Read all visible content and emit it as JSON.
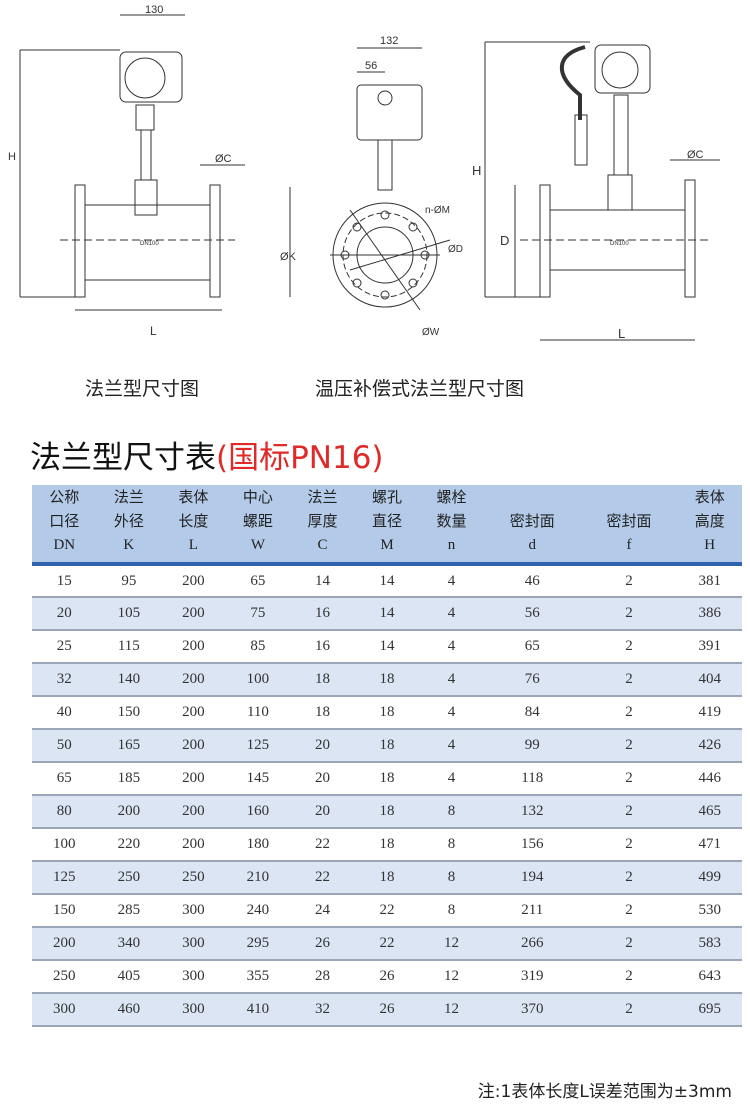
{
  "drawings": {
    "left": {
      "width_label": "130",
      "h_label": "H",
      "c_label": "ØC",
      "k_label": "ØK",
      "l_label": "L",
      "model": "DN100",
      "caption": "法兰型尺寸图"
    },
    "middle": {
      "width_label": "132",
      "offset_label": "56",
      "nm_label": "n-ØM",
      "d_label": "ØD",
      "w_label": "ØW"
    },
    "right": {
      "h_label": "H",
      "d_label": "D",
      "c_label": "ØC",
      "l_label": "L",
      "model": "DN100",
      "caption": "温压补偿式法兰型尺寸图"
    }
  },
  "table_title": "法兰型尺寸表",
  "table_subtitle": "(国标PN16)",
  "colors": {
    "header_bg": "#b3cbe8",
    "header_rule": "#2f63b0",
    "alt_row": "#dbe5f4",
    "subtitle": "#e02a2a"
  },
  "columns": [
    {
      "l1": "公称",
      "l2": "口径",
      "sym": "DN"
    },
    {
      "l1": "法兰",
      "l2": "外径",
      "sym": "K"
    },
    {
      "l1": "表体",
      "l2": "长度",
      "sym": "L"
    },
    {
      "l1": "中心",
      "l2": "螺距",
      "sym": "W"
    },
    {
      "l1": "法兰",
      "l2": "厚度",
      "sym": "C"
    },
    {
      "l1": "螺孔",
      "l2": "直径",
      "sym": "M"
    },
    {
      "l1": "螺栓",
      "l2": "数量",
      "sym": "n"
    },
    {
      "l1": "",
      "l2": "密封面",
      "sym": "d"
    },
    {
      "l1": "",
      "l2": "密封面",
      "sym": "f"
    },
    {
      "l1": "表体",
      "l2": "高度",
      "sym": "H"
    }
  ],
  "rows": [
    [
      "15",
      "95",
      "200",
      "65",
      "14",
      "14",
      "4",
      "46",
      "2",
      "381"
    ],
    [
      "20",
      "105",
      "200",
      "75",
      "16",
      "14",
      "4",
      "56",
      "2",
      "386"
    ],
    [
      "25",
      "115",
      "200",
      "85",
      "16",
      "14",
      "4",
      "65",
      "2",
      "391"
    ],
    [
      "32",
      "140",
      "200",
      "100",
      "18",
      "18",
      "4",
      "76",
      "2",
      "404"
    ],
    [
      "40",
      "150",
      "200",
      "110",
      "18",
      "18",
      "4",
      "84",
      "2",
      "419"
    ],
    [
      "50",
      "165",
      "200",
      "125",
      "20",
      "18",
      "4",
      "99",
      "2",
      "426"
    ],
    [
      "65",
      "185",
      "200",
      "145",
      "20",
      "18",
      "4",
      "118",
      "2",
      "446"
    ],
    [
      "80",
      "200",
      "200",
      "160",
      "20",
      "18",
      "8",
      "132",
      "2",
      "465"
    ],
    [
      "100",
      "220",
      "200",
      "180",
      "22",
      "18",
      "8",
      "156",
      "2",
      "471"
    ],
    [
      "125",
      "250",
      "250",
      "210",
      "22",
      "18",
      "8",
      "194",
      "2",
      "499"
    ],
    [
      "150",
      "285",
      "300",
      "240",
      "24",
      "22",
      "8",
      "211",
      "2",
      "530"
    ],
    [
      "200",
      "340",
      "300",
      "295",
      "26",
      "22",
      "12",
      "266",
      "2",
      "583"
    ],
    [
      "250",
      "405",
      "300",
      "355",
      "28",
      "26",
      "12",
      "319",
      "2",
      "643"
    ],
    [
      "300",
      "460",
      "300",
      "410",
      "32",
      "26",
      "12",
      "370",
      "2",
      "695"
    ]
  ],
  "note": "注:1表体长度L误差范围为±3mm"
}
